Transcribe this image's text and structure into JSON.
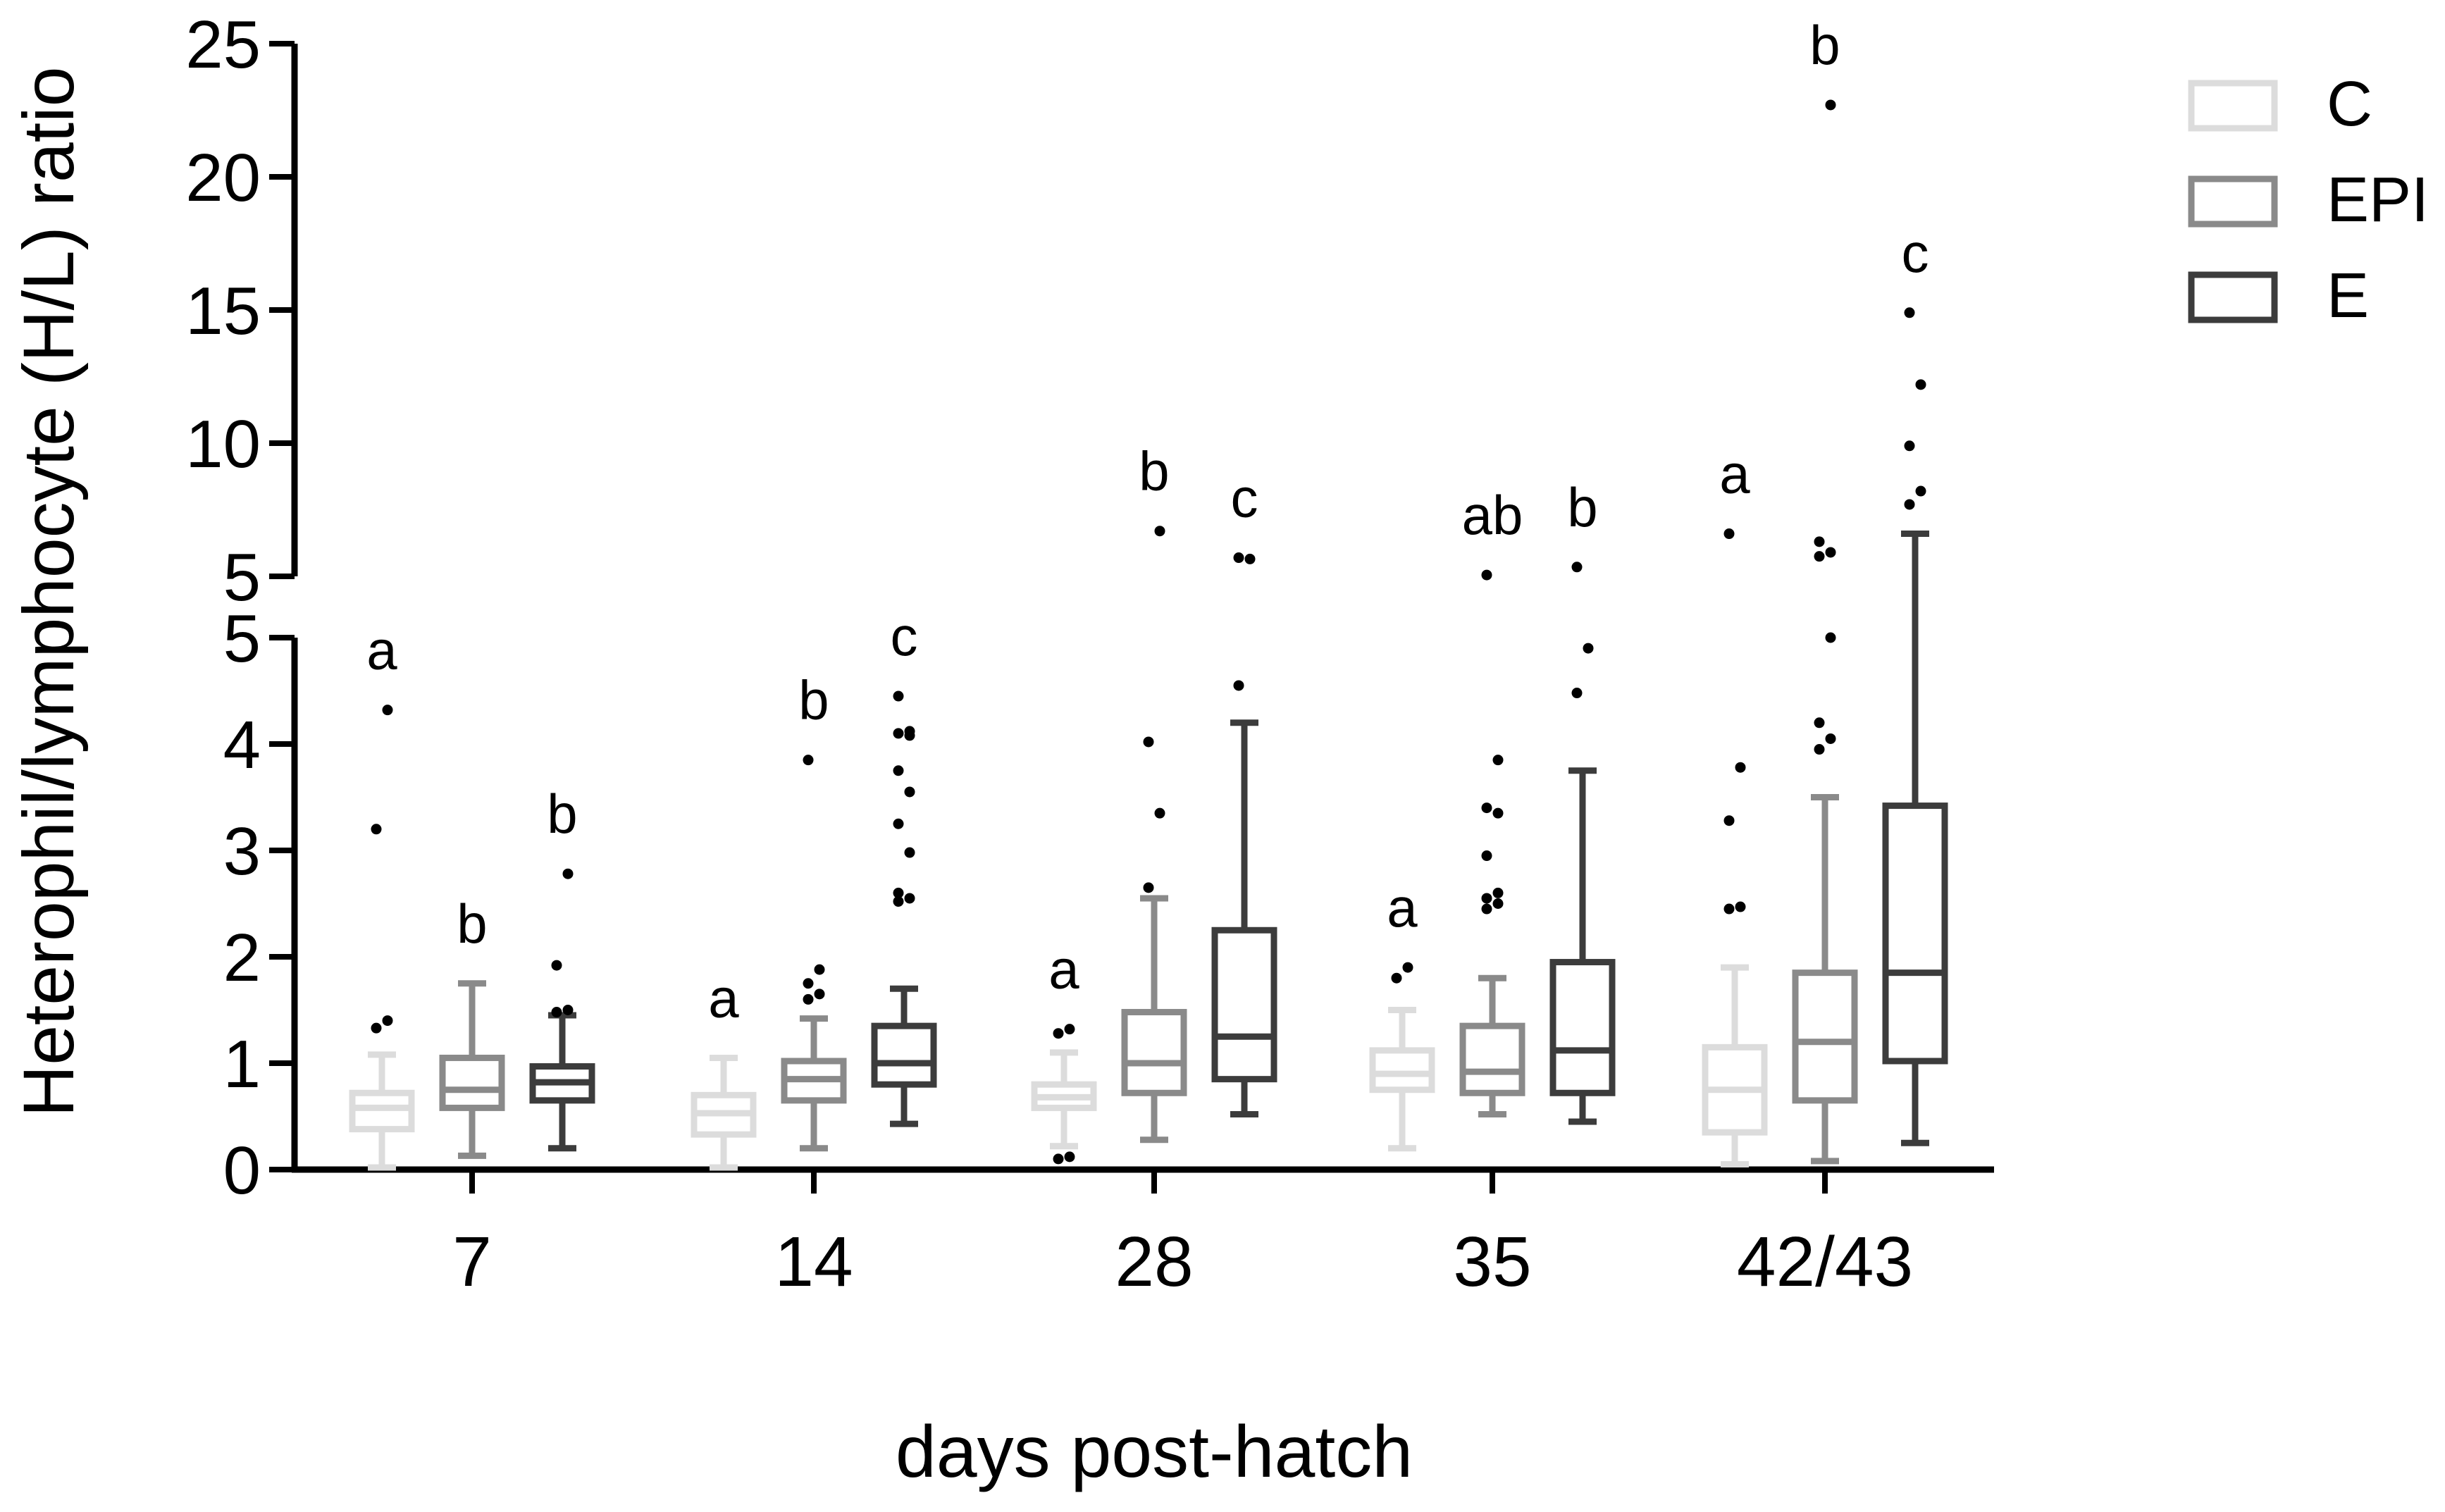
{
  "chart_data": {
    "type": "box",
    "xlabel": "days post-hatch",
    "ylabel": "Heterophil/lymphocyte (H/L) ratio",
    "categories": [
      "7",
      "14",
      "28",
      "35",
      "42/43"
    ],
    "y_axis": {
      "broken": true,
      "lower_range": [
        0,
        5
      ],
      "upper_range": [
        5,
        25
      ],
      "lower_ticks": [
        "0",
        "1",
        "2",
        "3",
        "4",
        "5"
      ],
      "upper_ticks": [
        "5",
        "10",
        "15",
        "20",
        "25"
      ]
    },
    "legend": {
      "position": "top-right",
      "entries": [
        {
          "name": "C",
          "color": "#dcdcdc"
        },
        {
          "name": "EPI",
          "color": "#8a8a8a"
        },
        {
          "name": "E",
          "color": "#3c3c3c"
        }
      ]
    },
    "series": [
      {
        "name": "C",
        "color": "#dcdcdc",
        "boxes": [
          {
            "whisker_low": 0.02,
            "q1": 0.38,
            "median": 0.58,
            "q3": 0.72,
            "whisker_high": 1.08,
            "outliers": [
              1.33,
              1.4,
              3.2,
              4.32
            ],
            "label": "a"
          },
          {
            "whisker_low": 0.02,
            "q1": 0.33,
            "median": 0.53,
            "q3": 0.7,
            "whisker_high": 1.05,
            "outliers": [],
            "label": "a"
          },
          {
            "whisker_low": 0.22,
            "q1": 0.58,
            "median": 0.68,
            "q3": 0.8,
            "whisker_high": 1.1,
            "outliers": [
              0.1,
              0.12,
              1.28,
              1.32
            ],
            "label": "a"
          },
          {
            "whisker_low": 0.2,
            "q1": 0.75,
            "median": 0.9,
            "q3": 1.12,
            "whisker_high": 1.5,
            "outliers": [
              1.8,
              1.9
            ],
            "label": "a"
          },
          {
            "whisker_low": 0.05,
            "q1": 0.35,
            "median": 0.75,
            "q3": 1.15,
            "whisker_high": 1.9,
            "outliers": [
              2.45,
              2.47,
              3.28,
              3.78,
              6.6
            ],
            "label": "a"
          }
        ]
      },
      {
        "name": "EPI",
        "color": "#8a8a8a",
        "boxes": [
          {
            "whisker_low": 0.13,
            "q1": 0.58,
            "median": 0.75,
            "q3": 1.05,
            "whisker_high": 1.75,
            "outliers": [],
            "label": "b"
          },
          {
            "whisker_low": 0.2,
            "q1": 0.65,
            "median": 0.85,
            "q3": 1.02,
            "whisker_high": 1.42,
            "outliers": [
              1.6,
              1.65,
              1.75,
              1.88,
              3.85
            ],
            "label": "b"
          },
          {
            "whisker_low": 0.28,
            "q1": 0.72,
            "median": 1.0,
            "q3": 1.48,
            "whisker_high": 2.55,
            "outliers": [
              2.65,
              3.35,
              4.02,
              6.7
            ],
            "label": "b"
          },
          {
            "whisker_low": 0.52,
            "q1": 0.72,
            "median": 0.92,
            "q3": 1.35,
            "whisker_high": 1.8,
            "outliers": [
              2.45,
              2.5,
              2.55,
              2.6,
              2.95,
              3.35,
              3.4,
              3.85,
              5.05
            ],
            "label": "ab"
          },
          {
            "whisker_low": 0.08,
            "q1": 0.65,
            "median": 1.2,
            "q3": 1.85,
            "whisker_high": 3.5,
            "outliers": [
              3.95,
              4.05,
              4.2,
              5.0,
              5.75,
              5.9,
              6.3,
              22.7
            ],
            "label": "b"
          }
        ]
      },
      {
        "name": "E",
        "color": "#3c3c3c",
        "boxes": [
          {
            "whisker_low": 0.2,
            "q1": 0.65,
            "median": 0.82,
            "q3": 0.97,
            "whisker_high": 1.45,
            "outliers": [
              1.48,
              1.5,
              1.92,
              2.78
            ],
            "label": "b"
          },
          {
            "whisker_low": 0.43,
            "q1": 0.8,
            "median": 1.0,
            "q3": 1.35,
            "whisker_high": 1.7,
            "outliers": [
              2.52,
              2.55,
              2.6,
              2.98,
              3.25,
              3.55,
              3.75,
              4.08,
              4.1,
              4.12,
              4.45
            ],
            "label": "c"
          },
          {
            "whisker_low": 0.52,
            "q1": 0.85,
            "median": 1.25,
            "q3": 2.25,
            "whisker_high": 4.2,
            "outliers": [
              4.55,
              5.65,
              5.7
            ],
            "label": "c"
          },
          {
            "whisker_low": 0.45,
            "q1": 0.72,
            "median": 1.12,
            "q3": 1.95,
            "whisker_high": 3.75,
            "outliers": [
              4.48,
              4.9,
              5.35
            ],
            "label": "b"
          },
          {
            "whisker_low": 0.25,
            "q1": 1.02,
            "median": 1.85,
            "q3": 3.42,
            "whisker_high": 6.6,
            "outliers": [
              7.7,
              8.2,
              9.9,
              12.2,
              14.9
            ],
            "label": "c"
          }
        ]
      }
    ]
  }
}
